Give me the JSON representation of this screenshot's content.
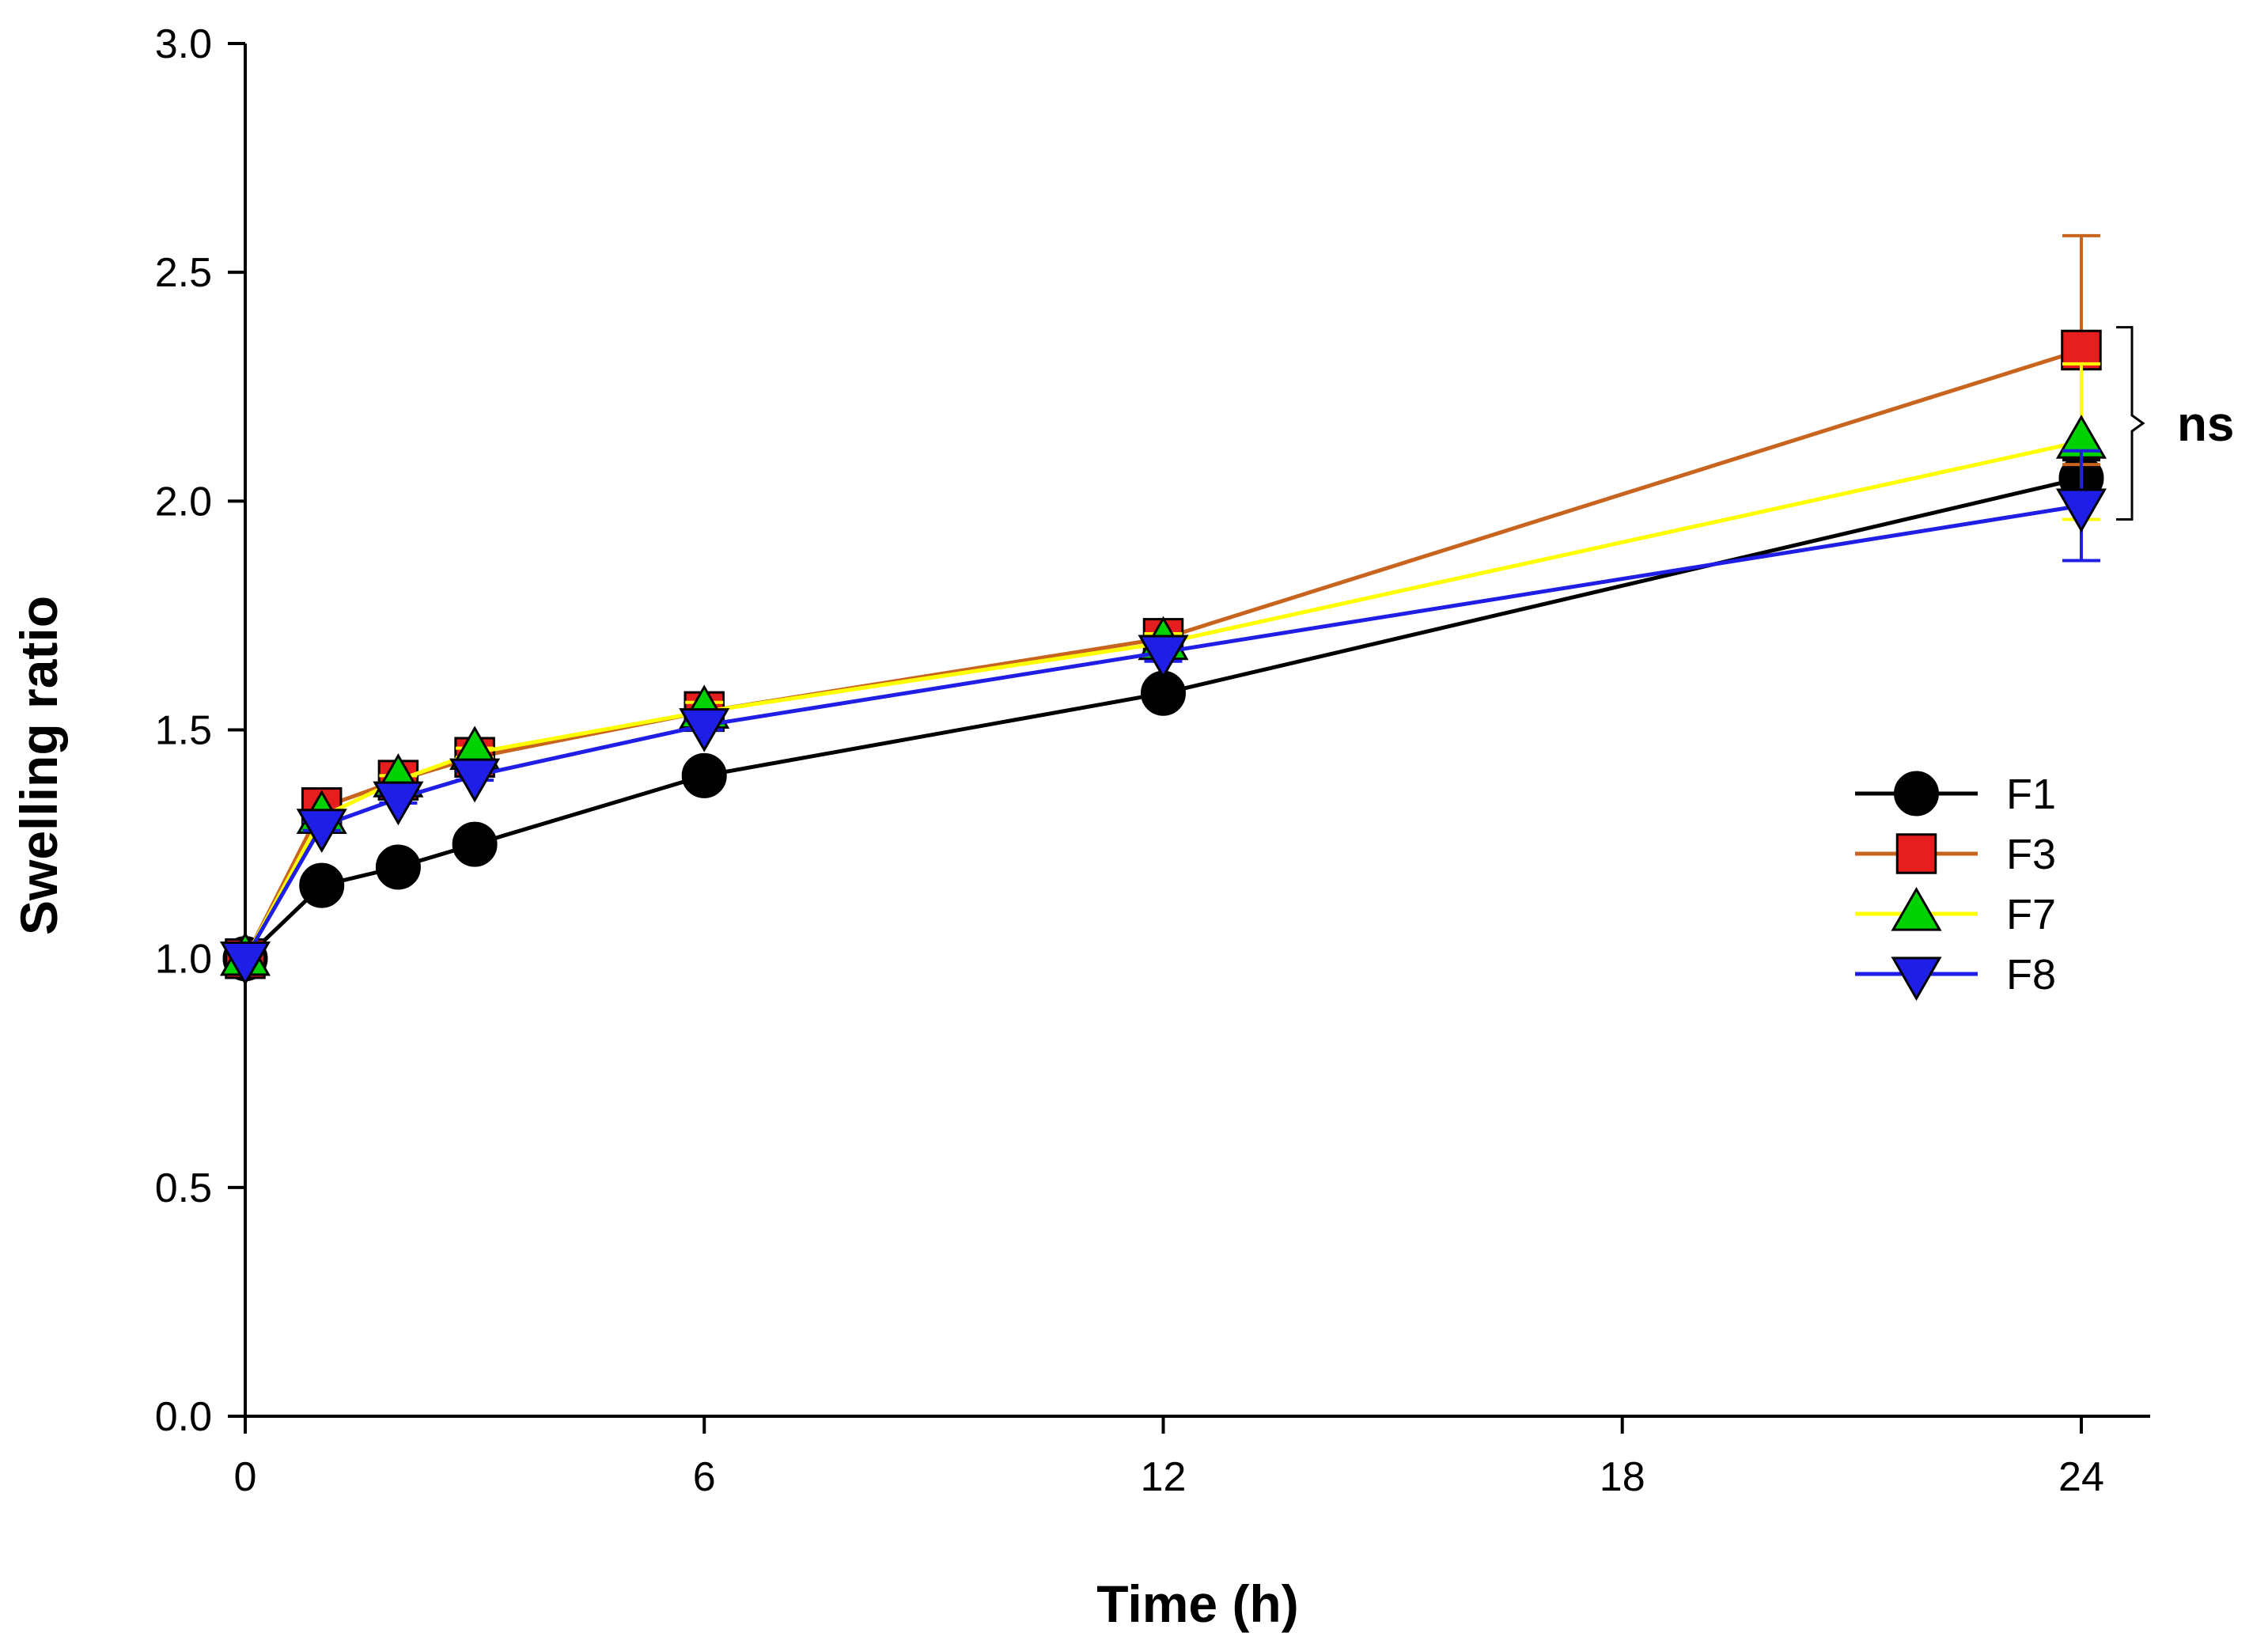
{
  "chart_data": {
    "type": "line",
    "xlabel": "Time (h)",
    "ylabel": "Swelling ratio",
    "xlim": [
      0,
      24.9
    ],
    "ylim": [
      0,
      3.0
    ],
    "xticks": [
      0,
      6,
      12,
      18,
      24
    ],
    "xtick_labels": [
      "0",
      "6",
      "12",
      "18",
      "24"
    ],
    "yticks": [
      0,
      0.5,
      1.0,
      1.5,
      2.0,
      2.5,
      3.0
    ],
    "ytick_labels": [
      "0.0",
      "0.5",
      "1.0",
      "1.5",
      "2.0",
      "2.5",
      "3.0"
    ],
    "grid": false,
    "legend_position": "right",
    "x": [
      0,
      1,
      2,
      3,
      6,
      12,
      24
    ],
    "series": [
      {
        "name": "F1",
        "color": "#000000",
        "marker": "circle",
        "marker_fill": "#000000",
        "values": [
          1.0,
          1.16,
          1.2,
          1.25,
          1.4,
          1.58,
          2.05
        ],
        "errors": [
          0,
          0.01,
          0.01,
          0.01,
          0.01,
          0.02,
          0.04
        ]
      },
      {
        "name": "F3",
        "color": "#c8641e",
        "marker": "square",
        "marker_fill": "#e61e1e",
        "values": [
          1.0,
          1.33,
          1.39,
          1.44,
          1.54,
          1.7,
          2.33
        ],
        "errors": [
          0,
          0.01,
          0.01,
          0.02,
          0.02,
          0.02,
          0.25
        ]
      },
      {
        "name": "F7",
        "color": "#ffff00",
        "marker": "triangle-up",
        "marker_fill": "#00d200",
        "values": [
          1.0,
          1.31,
          1.39,
          1.45,
          1.54,
          1.69,
          2.13
        ],
        "errors": [
          0,
          0.01,
          0.01,
          0.01,
          0.02,
          0.02,
          0.17
        ]
      },
      {
        "name": "F8",
        "color": "#1e1ee6",
        "marker": "triangle-down",
        "marker_fill": "#1e1ee6",
        "values": [
          1.0,
          1.29,
          1.35,
          1.4,
          1.51,
          1.67,
          1.99
        ],
        "errors": [
          0,
          0.01,
          0.01,
          0.01,
          0.01,
          0.02,
          0.12
        ]
      }
    ],
    "annotations": [
      {
        "text": "ns",
        "y_range": [
          1.96,
          2.38
        ]
      }
    ]
  }
}
